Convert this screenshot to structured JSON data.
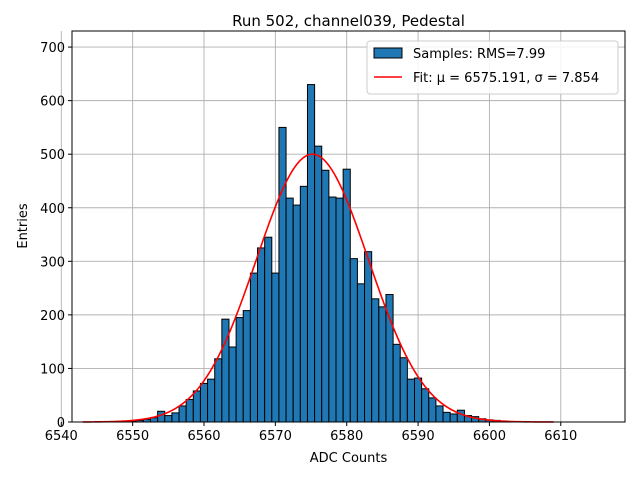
{
  "chart_data": {
    "type": "bar",
    "title": "Run 502, channel039, Pedestal",
    "xlabel": "ADC Counts",
    "ylabel": "Entries",
    "xlim": [
      6541.5,
      6619.0
    ],
    "ylim": [
      0,
      730
    ],
    "xticks": [
      6540,
      6550,
      6560,
      6570,
      6580,
      6590,
      6600,
      6610
    ],
    "yticks": [
      0,
      100,
      200,
      300,
      400,
      500,
      600,
      700
    ],
    "grid": true,
    "legend_position": "top-right",
    "series": [
      {
        "name": "Samples: RMS=7.99",
        "kind": "histogram",
        "color": "#1f77b4",
        "bin_start": 6548.5,
        "bin_width": 1,
        "values": [
          1,
          2,
          3,
          5,
          8,
          20,
          12,
          17,
          30,
          42,
          58,
          72,
          80,
          118,
          192,
          140,
          195,
          208,
          278,
          325,
          345,
          278,
          550,
          418,
          405,
          440,
          630,
          515,
          470,
          420,
          418,
          472,
          305,
          258,
          318,
          230,
          215,
          238,
          145,
          120,
          80,
          82,
          62,
          45,
          30,
          18,
          15,
          22,
          12,
          10,
          6,
          4,
          3,
          2
        ]
      },
      {
        "name": "Fit: μ = 6575.191, σ = 7.854",
        "kind": "gaussian-fit",
        "color": "#ff0000",
        "mu": 6575.191,
        "sigma": 7.854,
        "amplitude": 500,
        "x_range": [
          6543,
          6609
        ]
      }
    ]
  }
}
